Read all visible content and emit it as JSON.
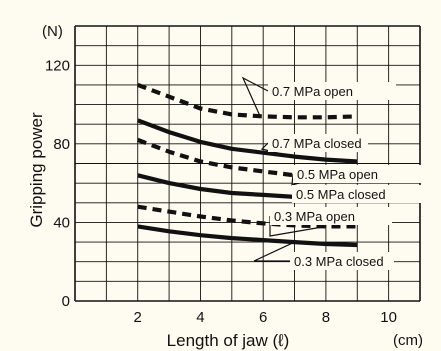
{
  "chart_data": {
    "type": "line",
    "ylabel": "Gripping power",
    "y_unit": "(N)",
    "xlabel": "Length of jaw (ℓ)",
    "x_unit": "(cm)",
    "xlim": [
      0,
      11
    ],
    "ylim": [
      0,
      140
    ],
    "x_ticks": [
      2,
      4,
      6,
      8,
      10
    ],
    "y_ticks": [
      0,
      40,
      80,
      120
    ],
    "grid": true,
    "series": [
      {
        "name": "0.7 MPa open",
        "style": "dashed",
        "x": [
          2,
          3,
          4,
          5,
          6,
          7,
          8,
          9
        ],
        "y": [
          110,
          104,
          98,
          95,
          94,
          93.5,
          93.5,
          94
        ]
      },
      {
        "name": "0.7 MPa closed",
        "style": "solid",
        "x": [
          2,
          3,
          4,
          5,
          6,
          7,
          8,
          9
        ],
        "y": [
          92,
          86,
          81,
          77.5,
          75.5,
          73.5,
          72,
          71
        ]
      },
      {
        "name": "0.5 MPa open",
        "style": "dashed",
        "x": [
          2,
          3,
          4,
          5,
          6,
          7,
          8,
          9
        ],
        "y": [
          82,
          76,
          71,
          68,
          66,
          64,
          63,
          62
        ]
      },
      {
        "name": "0.5 MPa closed",
        "style": "solid",
        "x": [
          2,
          3,
          4,
          5,
          6,
          7,
          8,
          9
        ],
        "y": [
          64,
          60,
          57,
          55,
          54,
          53,
          52,
          51
        ]
      },
      {
        "name": "0.3 MPa open",
        "style": "dashed",
        "x": [
          2,
          3,
          4,
          5,
          6,
          7,
          8,
          9
        ],
        "y": [
          48,
          45.5,
          43,
          41,
          39.5,
          38.5,
          38,
          38
        ]
      },
      {
        "name": "0.3 MPa closed",
        "style": "solid",
        "x": [
          2,
          3,
          4,
          5,
          6,
          7,
          8,
          9
        ],
        "y": [
          38,
          35.5,
          33.5,
          32,
          31,
          30,
          29,
          28.5
        ]
      }
    ],
    "colors": {
      "background": "#fefcf0",
      "line": "#111111",
      "grid": "#111111"
    }
  }
}
